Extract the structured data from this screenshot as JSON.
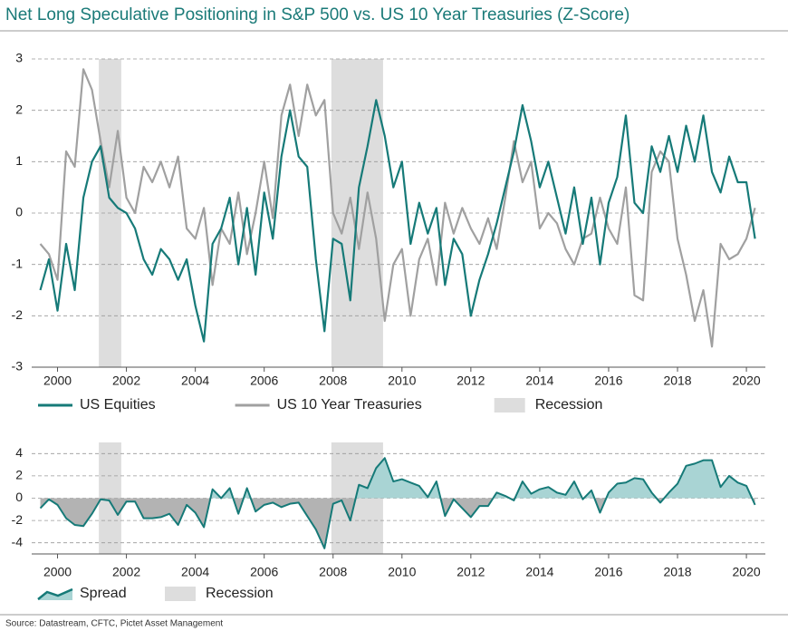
{
  "title": "Net Long Speculative Positioning in S&P 500 vs. US 10 Year Treasuries (Z-Score)",
  "source": "Source: Datastream, CFTC, Pictet Asset Management",
  "chart_data": [
    {
      "type": "line",
      "x": [
        1999.5,
        1999.75,
        2000,
        2000.25,
        2000.5,
        2000.75,
        2001,
        2001.25,
        2001.5,
        2001.75,
        2002,
        2002.25,
        2002.5,
        2002.75,
        2003,
        2003.25,
        2003.5,
        2003.75,
        2004,
        2004.25,
        2004.5,
        2004.75,
        2005,
        2005.25,
        2005.5,
        2005.75,
        2006,
        2006.25,
        2006.5,
        2006.75,
        2007,
        2007.25,
        2007.5,
        2007.75,
        2008,
        2008.25,
        2008.5,
        2008.75,
        2009,
        2009.25,
        2009.5,
        2009.75,
        2010,
        2010.25,
        2010.5,
        2010.75,
        2011,
        2011.25,
        2011.5,
        2011.75,
        2012,
        2012.25,
        2012.5,
        2012.75,
        2013,
        2013.25,
        2013.5,
        2013.75,
        2014,
        2014.25,
        2014.5,
        2014.75,
        2015,
        2015.25,
        2015.5,
        2015.75,
        2016,
        2016.25,
        2016.5,
        2016.75,
        2017,
        2017.25,
        2017.5,
        2017.75,
        2018,
        2018.25,
        2018.5,
        2018.75,
        2019,
        2019.25,
        2019.5,
        2019.75,
        2020,
        2020.25
      ],
      "series": [
        {
          "name": "US Equities",
          "color": "#167a78",
          "values": [
            -1.5,
            -0.9,
            -1.9,
            -0.6,
            -1.5,
            0.3,
            1.0,
            1.3,
            0.3,
            0.1,
            0.0,
            -0.3,
            -0.9,
            -1.2,
            -0.7,
            -0.9,
            -1.3,
            -0.9,
            -1.8,
            -2.5,
            -0.6,
            -0.3,
            0.3,
            -1.0,
            0.1,
            -1.2,
            0.4,
            -0.5,
            1.1,
            2.0,
            1.1,
            0.9,
            -0.9,
            -2.3,
            -0.5,
            -0.6,
            -1.7,
            0.5,
            1.3,
            2.2,
            1.5,
            0.5,
            1.0,
            -0.6,
            0.2,
            -0.4,
            0.1,
            -1.4,
            -0.5,
            -0.8,
            -2.0,
            -1.3,
            -0.8,
            -0.2,
            0.5,
            1.2,
            2.1,
            1.4,
            0.5,
            1.0,
            0.3,
            -0.4,
            0.5,
            -0.6,
            0.3,
            -1.0,
            0.2,
            0.7,
            1.9,
            0.2,
            0.0,
            1.3,
            0.8,
            1.5,
            0.8,
            1.7,
            1.0,
            1.9,
            0.8,
            0.4,
            1.1,
            0.6,
            0.6,
            -0.5
          ]
        },
        {
          "name": "US 10 Year Treasuries",
          "color": "#a0a0a0",
          "values": [
            -0.6,
            -0.8,
            -1.3,
            1.2,
            0.9,
            2.8,
            2.4,
            1.4,
            0.5,
            1.6,
            0.3,
            0.0,
            0.9,
            0.6,
            1.0,
            0.5,
            1.1,
            -0.3,
            -0.5,
            0.1,
            -1.4,
            -0.3,
            -0.6,
            0.4,
            -0.8,
            0.0,
            1.0,
            -0.1,
            1.9,
            2.5,
            1.5,
            2.5,
            1.9,
            2.2,
            0.0,
            -0.4,
            0.3,
            -0.7,
            0.4,
            -0.5,
            -2.1,
            -1.0,
            -0.7,
            -2.0,
            -0.9,
            -0.5,
            -1.4,
            0.2,
            -0.4,
            0.1,
            -0.3,
            -0.6,
            -0.1,
            -0.7,
            0.3,
            1.4,
            0.6,
            1.0,
            -0.3,
            0.0,
            -0.2,
            -0.7,
            -1.0,
            -0.5,
            -0.4,
            0.3,
            -0.3,
            -0.6,
            0.5,
            -1.6,
            -1.7,
            0.8,
            1.2,
            1.0,
            -0.5,
            -1.2,
            -2.1,
            -1.5,
            -2.6,
            -0.6,
            -0.9,
            -0.8,
            -0.5,
            0.1
          ]
        }
      ],
      "recession": {
        "label": "Recession",
        "color": "#dddddd",
        "ranges": [
          [
            2001.2,
            2001.85
          ],
          [
            2007.95,
            2009.45
          ]
        ]
      },
      "xlim": [
        1999.25,
        2020.55
      ],
      "xticks": [
        2000,
        2002,
        2004,
        2006,
        2008,
        2010,
        2012,
        2014,
        2016,
        2018,
        2020
      ],
      "ylim": [
        -3,
        3
      ],
      "yticks": [
        -3,
        -2,
        -1,
        0,
        1,
        2,
        3
      ],
      "grid": true
    },
    {
      "type": "area",
      "x": [
        1999.5,
        1999.75,
        2000,
        2000.25,
        2000.5,
        2000.75,
        2001,
        2001.25,
        2001.5,
        2001.75,
        2002,
        2002.25,
        2002.5,
        2002.75,
        2003,
        2003.25,
        2003.5,
        2003.75,
        2004,
        2004.25,
        2004.5,
        2004.75,
        2005,
        2005.25,
        2005.5,
        2005.75,
        2006,
        2006.25,
        2006.5,
        2006.75,
        2007,
        2007.25,
        2007.5,
        2007.75,
        2008,
        2008.25,
        2008.5,
        2008.75,
        2009,
        2009.25,
        2009.5,
        2009.75,
        2010,
        2010.25,
        2010.5,
        2010.75,
        2011,
        2011.25,
        2011.5,
        2011.75,
        2012,
        2012.25,
        2012.5,
        2012.75,
        2013,
        2013.25,
        2013.5,
        2013.75,
        2014,
        2014.25,
        2014.5,
        2014.75,
        2015,
        2015.25,
        2015.5,
        2015.75,
        2016,
        2016.25,
        2016.5,
        2016.75,
        2017,
        2017.25,
        2017.5,
        2017.75,
        2018,
        2018.25,
        2018.5,
        2018.75,
        2019,
        2019.25,
        2019.5,
        2019.75,
        2020,
        2020.25
      ],
      "series": [
        {
          "name": "Spread",
          "color": "#167a78",
          "positive_fill": "#a9d4d4",
          "negative_fill": "#b3b3b3",
          "values": [
            -0.9,
            -0.1,
            -0.6,
            -1.8,
            -2.4,
            -2.5,
            -1.4,
            -0.1,
            -0.2,
            -1.5,
            -0.3,
            -0.3,
            -1.8,
            -1.8,
            -1.7,
            -1.4,
            -2.4,
            -0.6,
            -1.3,
            -2.6,
            0.8,
            0.0,
            0.9,
            -1.4,
            0.9,
            -1.2,
            -0.6,
            -0.4,
            -0.8,
            -0.5,
            -0.4,
            -1.6,
            -2.8,
            -4.5,
            -0.5,
            -0.2,
            -2.0,
            1.2,
            0.9,
            2.7,
            3.6,
            1.5,
            1.7,
            1.4,
            1.1,
            0.1,
            1.5,
            -1.6,
            -0.1,
            -0.9,
            -1.7,
            -0.7,
            -0.7,
            0.5,
            0.2,
            -0.2,
            1.5,
            0.4,
            0.8,
            1.0,
            0.5,
            0.3,
            1.5,
            -0.1,
            0.7,
            -1.3,
            0.5,
            1.3,
            1.4,
            1.8,
            1.7,
            0.5,
            -0.4,
            0.5,
            1.3,
            2.9,
            3.1,
            3.4,
            3.4,
            1.0,
            2.0,
            1.4,
            1.1,
            -0.6
          ]
        }
      ],
      "recession": {
        "label": "Recession",
        "color": "#dddddd",
        "ranges": [
          [
            2001.2,
            2001.85
          ],
          [
            2007.95,
            2009.45
          ]
        ]
      },
      "xlim": [
        1999.25,
        2020.55
      ],
      "xticks": [
        2000,
        2002,
        2004,
        2006,
        2008,
        2010,
        2012,
        2014,
        2016,
        2018,
        2020
      ],
      "ylim": [
        -5,
        5
      ],
      "yticks": [
        -4,
        -2,
        0,
        2,
        4
      ],
      "grid": true
    }
  ]
}
